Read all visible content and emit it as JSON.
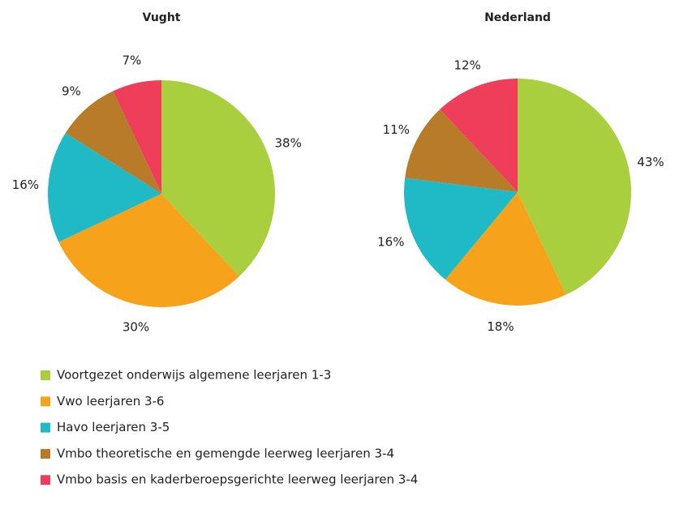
{
  "chart_data": [
    {
      "type": "pie",
      "title": "Vught",
      "categories": [
        "Voortgezet onderwijs algemene leerjaren 1-3",
        "Vwo leerjaren 3-6",
        "Havo leerjaren 3-5",
        "Vmbo theoretische en gemengde leerweg leerjaren 3-4",
        "Vmbo basis en kaderberoepsgerichte leerweg leerjaren 3-4"
      ],
      "values": [
        38,
        30,
        16,
        9,
        7
      ],
      "value_labels": [
        "38%",
        "30%",
        "16%",
        "9%",
        "7%"
      ],
      "colors": [
        "#a9cf3f",
        "#f7a21b",
        "#1fbac6",
        "#b77b2a",
        "#ee3e5a"
      ]
    },
    {
      "type": "pie",
      "title": "Nederland",
      "categories": [
        "Voortgezet onderwijs algemene leerjaren 1-3",
        "Vwo leerjaren 3-6",
        "Havo leerjaren 3-5",
        "Vmbo theoretische en gemengde leerweg leerjaren 3-4",
        "Vmbo basis en kaderberoepsgerichte leerweg leerjaren 3-4"
      ],
      "values": [
        43,
        18,
        16,
        11,
        12
      ],
      "value_labels": [
        "43%",
        "18%",
        "16%",
        "11%",
        "12%"
      ],
      "colors": [
        "#a9cf3f",
        "#f7a21b",
        "#1fbac6",
        "#b77b2a",
        "#ee3e5a"
      ]
    }
  ]
}
